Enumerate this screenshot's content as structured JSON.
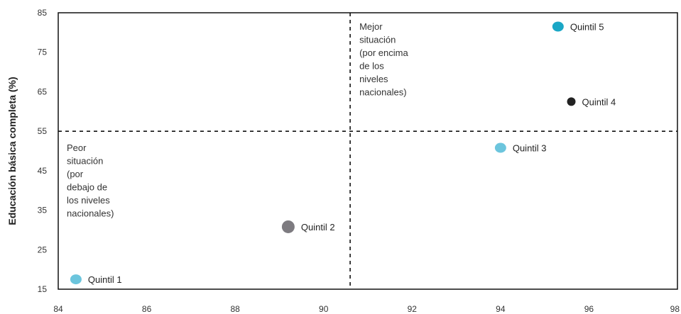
{
  "chart_data": {
    "type": "scatter",
    "title": "",
    "xlabel": "",
    "ylabel": "Educación básica completa (%)",
    "xlim": [
      84,
      98
    ],
    "ylim": [
      15,
      85
    ],
    "xticks": [
      84,
      86,
      88,
      90,
      92,
      94,
      96,
      98
    ],
    "yticks": [
      15,
      25,
      35,
      45,
      55,
      65,
      75,
      85
    ],
    "grid": false,
    "reference_lines": {
      "x": 90.6,
      "y": 55
    },
    "points": [
      {
        "label": "Quintil 1",
        "x": 84.4,
        "y": 17.5,
        "color": "#6cc5dd",
        "size": "medium"
      },
      {
        "label": "Quintil 2",
        "x": 89.2,
        "y": 30.8,
        "color": "#7d7b80",
        "size": "large"
      },
      {
        "label": "Quintil 3",
        "x": 94.0,
        "y": 50.8,
        "color": "#6cc5dd",
        "size": "medium"
      },
      {
        "label": "Quintil 4",
        "x": 95.6,
        "y": 62.5,
        "color": "#222222",
        "size": "small"
      },
      {
        "label": "Quintil 5",
        "x": 95.3,
        "y": 81.5,
        "color": "#1aa7c6",
        "size": "medium"
      }
    ],
    "annotations": {
      "upper_right": [
        "Mejor",
        "situación",
        "(por encima",
        "de los",
        "niveles",
        "nacionales)"
      ],
      "lower_left": [
        "Peor",
        "situación",
        "(por",
        "debajo de",
        "los niveles",
        "nacionales)"
      ]
    }
  }
}
